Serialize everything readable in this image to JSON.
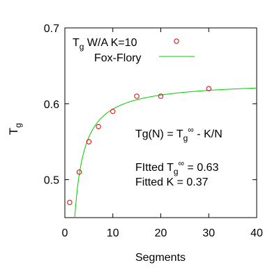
{
  "chart_data": {
    "type": "scatter",
    "xlabel": "Segments",
    "ylabel_main": "T",
    "ylabel_sub": "g",
    "xlim": [
      0,
      40
    ],
    "ylim": [
      0.45,
      0.7
    ],
    "xticks": [
      0,
      10,
      20,
      30,
      40
    ],
    "yticks": [
      0.5,
      0.6,
      0.7
    ],
    "ytick_labels": [
      "0.5",
      "0.6",
      "0.7"
    ],
    "xtick_labels": [
      "0",
      "10",
      "20",
      "30",
      "40"
    ],
    "grid": false,
    "legend_position": "top-left",
    "series": [
      {
        "legend_main": "T",
        "legend_sub": "g",
        "legend_rest": " W/A K=10",
        "kind": "points",
        "color": "#dd0000",
        "x": [
          1,
          3,
          5,
          7,
          10,
          15,
          20,
          30
        ],
        "y": [
          0.47,
          0.51,
          0.55,
          0.57,
          0.59,
          0.61,
          0.61,
          0.62
        ]
      },
      {
        "name": "Fox-Flory",
        "kind": "line",
        "color": "#00cc00",
        "tg_inf": 0.63,
        "k": 0.37
      }
    ],
    "annotations": {
      "formula_line": [
        "Tg(N) = T",
        "g",
        "∞",
        " - K/N"
      ],
      "fitted_tg_line": [
        "FItted T",
        "g",
        "∞",
        " = 0.63"
      ],
      "fitted_k_line": "Fitted K = 0.37"
    }
  }
}
